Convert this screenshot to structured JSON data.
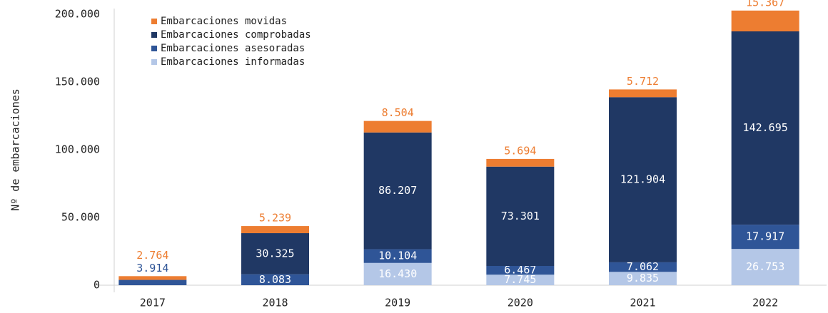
{
  "chart_data": {
    "type": "stacked_bar",
    "y_label": "Nº de embarcaciones",
    "categories": [
      "2017",
      "2018",
      "2019",
      "2020",
      "2021",
      "2022"
    ],
    "series": [
      {
        "name": "Embarcaciones informadas",
        "color": "#b4c7e7",
        "label_color": "#ffffff",
        "values": [
          null,
          null,
          16430,
          7745,
          9835,
          26753
        ],
        "value_labels": [
          null,
          null,
          "16.430",
          "7.745",
          "9.835",
          "26.753"
        ]
      },
      {
        "name": "Embarcaciones asesoradas",
        "color": "#2f5597",
        "label_color": "#ffffff",
        "values": [
          3914,
          8083,
          10104,
          6467,
          7062,
          17917
        ],
        "value_labels": [
          "3.914",
          "8.083",
          "10.104",
          "6.467",
          "7.062",
          "17.917"
        ]
      },
      {
        "name": "Embarcaciones comprobadas",
        "color": "#203864",
        "label_color": "#ffffff",
        "values": [
          null,
          30325,
          86207,
          73301,
          121904,
          142695
        ],
        "value_labels": [
          null,
          "30.325",
          "86.207",
          "73.301",
          "121.904",
          "142.695"
        ]
      },
      {
        "name": "Embarcaciones movidas",
        "color": "#ed7d31",
        "label_color": "#ed7d31",
        "values": [
          2764,
          5239,
          8504,
          5694,
          5712,
          15367
        ],
        "value_labels": [
          "2.764",
          "5.239",
          "8.504",
          "5.694",
          "5.712",
          "15.367"
        ]
      }
    ],
    "ylim": [
      0,
      200000
    ],
    "yticks": [
      0,
      {
        "value": 50000,
        "label": "50.000"
      },
      {
        "value": 100000,
        "label": "100.000"
      },
      {
        "value": 150000,
        "label": "150.000"
      },
      {
        "value": 200000,
        "label": "200.000"
      }
    ],
    "legend": "upper left"
  }
}
